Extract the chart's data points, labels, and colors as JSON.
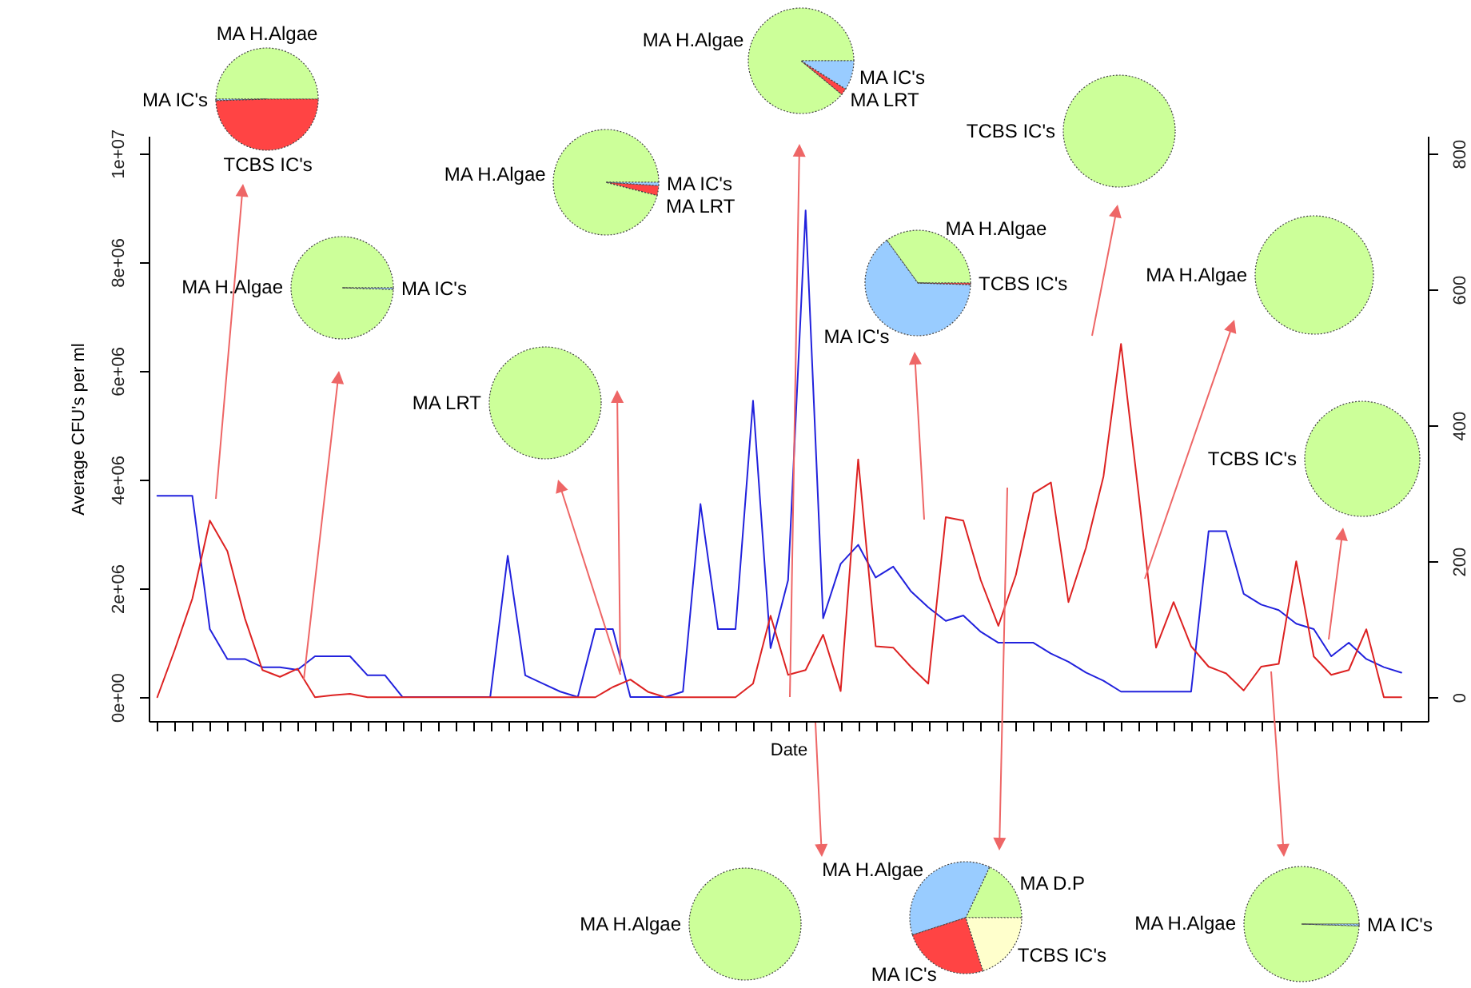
{
  "chart_data": [
    {
      "type": "line",
      "xlabel": "Date",
      "ylabel": "Average CFU's per ml",
      "categories": [
        null,
        null,
        null,
        null,
        null,
        null,
        null,
        null,
        null,
        null,
        null,
        null,
        null,
        null,
        null,
        null,
        null,
        null,
        null,
        null,
        null,
        null,
        null,
        null,
        null,
        null,
        null,
        null,
        null,
        null,
        null,
        null,
        null,
        null,
        null,
        null,
        null,
        null,
        null,
        null,
        null,
        null,
        null,
        null,
        null,
        null,
        null,
        null,
        null,
        null,
        null,
        null,
        null,
        null,
        null,
        null,
        null,
        null,
        null,
        null,
        null,
        null,
        null,
        null,
        null,
        null,
        null,
        null,
        null,
        null,
        null,
        null
      ],
      "series": [
        {
          "color": "#2222dd",
          "values": [
            3700000,
            3700000,
            3700000,
            1250000,
            700000,
            700000,
            550000,
            550000,
            500000,
            750000,
            750000,
            750000,
            400000,
            400000,
            0,
            0,
            0,
            0,
            0,
            0,
            2600000,
            400000,
            250000,
            100000,
            0,
            1250000,
            1250000,
            0,
            0,
            0,
            100000,
            3550000,
            1250000,
            1250000,
            5450000,
            900000,
            2150000,
            8950000,
            1450000,
            2450000,
            2800000,
            2200000,
            2400000,
            1950000,
            1650000,
            1400000,
            1500000,
            1200000,
            1000000,
            1000000,
            1000000,
            800000,
            650000,
            450000,
            300000,
            100000,
            100000,
            100000,
            100000,
            100000,
            3050000,
            3050000,
            1900000,
            1700000,
            1600000,
            1350000,
            1250000,
            750000,
            1000000,
            700000,
            550000,
            450000
          ]
        },
        {
          "color": "#dd2222",
          "axis": "y2",
          "values": [
            0,
            70,
            145,
            260,
            215,
            116,
            40,
            30,
            42,
            0,
            3,
            5,
            0,
            0,
            0,
            0,
            0,
            0,
            0,
            0,
            0,
            0,
            0,
            0,
            0,
            0,
            15,
            26,
            8,
            0,
            0,
            0,
            0,
            0,
            20,
            120,
            33,
            40,
            92,
            9,
            350,
            75,
            73,
            45,
            20,
            265,
            260,
            172,
            105,
            180,
            300,
            316,
            140,
            220,
            325,
            520,
            300,
            73,
            140,
            75,
            45,
            35,
            10,
            45,
            49,
            200,
            60,
            33,
            40,
            100,
            0,
            0
          ]
        }
      ],
      "ylim": [
        -440000,
        10320000
      ],
      "yticks": [
        {
          "value": 0,
          "label": "0e+00"
        },
        {
          "value": 2000000,
          "label": "2e+06"
        },
        {
          "value": 4000000,
          "label": "4e+06"
        },
        {
          "value": 6000000,
          "label": "6e+06"
        },
        {
          "value": 8000000,
          "label": "8e+06"
        },
        {
          "value": 10000000,
          "label": "1e+07"
        }
      ],
      "y2lim": [
        -35,
        826
      ],
      "y2ticks": [
        0,
        200,
        400,
        600,
        800
      ]
    },
    {
      "type": "pie",
      "categories": [
        "MA H.Algae",
        "MA IC's",
        "TCBS IC's"
      ],
      "values": [
        50,
        0.5,
        49.5
      ],
      "colors": [
        "#ccff99",
        "#99ccff",
        "#ff4444"
      ]
    },
    {
      "type": "pie",
      "categories": [
        "MA H.Algae",
        "MA IC's"
      ],
      "values": [
        99.5,
        0.5
      ],
      "colors": [
        "#ccff99",
        "#99ccff"
      ]
    },
    {
      "type": "pie",
      "categories": [
        "MA H.Algae",
        "MA LRT",
        "MA IC's"
      ],
      "values": [
        96,
        3,
        1
      ],
      "colors": [
        "#ccff99",
        "#ff4444",
        "#99ccff"
      ]
    },
    {
      "type": "pie",
      "categories": [
        "MA LRT"
      ],
      "values": [
        100
      ],
      "colors": [
        "#ccff99"
      ]
    },
    {
      "type": "pie",
      "categories": [
        "MA H.Algae",
        "MA LRT",
        "MA IC's"
      ],
      "values": [
        89,
        2,
        9
      ],
      "colors": [
        "#ccff99",
        "#ff4444",
        "#99ccff"
      ]
    },
    {
      "type": "pie",
      "categories": [
        "MA H.Algae",
        "MA IC's",
        "TCBS IC's"
      ],
      "values": [
        35,
        64.5,
        0.5
      ],
      "colors": [
        "#ccff99",
        "#99ccff",
        "#ff4444"
      ]
    },
    {
      "type": "pie",
      "categories": [
        "TCBS IC's"
      ],
      "values": [
        100
      ],
      "colors": [
        "#ccff99"
      ]
    },
    {
      "type": "pie",
      "categories": [
        "MA H.Algae"
      ],
      "values": [
        100
      ],
      "colors": [
        "#ccff99"
      ]
    },
    {
      "type": "pie",
      "categories": [
        "TCBS IC's"
      ],
      "values": [
        100
      ],
      "colors": [
        "#ccff99"
      ]
    },
    {
      "type": "pie",
      "categories": [
        "MA H.Algae"
      ],
      "values": [
        100
      ],
      "colors": [
        "#ccff99"
      ]
    },
    {
      "type": "pie",
      "categories": [
        "MA D.P",
        "MA H.Algae",
        "MA IC's",
        "TCBS IC's"
      ],
      "values": [
        18,
        37,
        25,
        20
      ],
      "colors": [
        "#ccff99",
        "#99ccff",
        "#ff4444",
        "#ffffcc"
      ]
    },
    {
      "type": "pie",
      "categories": [
        "MA H.Algae",
        "MA IC's"
      ],
      "values": [
        99.5,
        0.5
      ],
      "colors": [
        "#ccff99",
        "#99ccff"
      ]
    }
  ]
}
